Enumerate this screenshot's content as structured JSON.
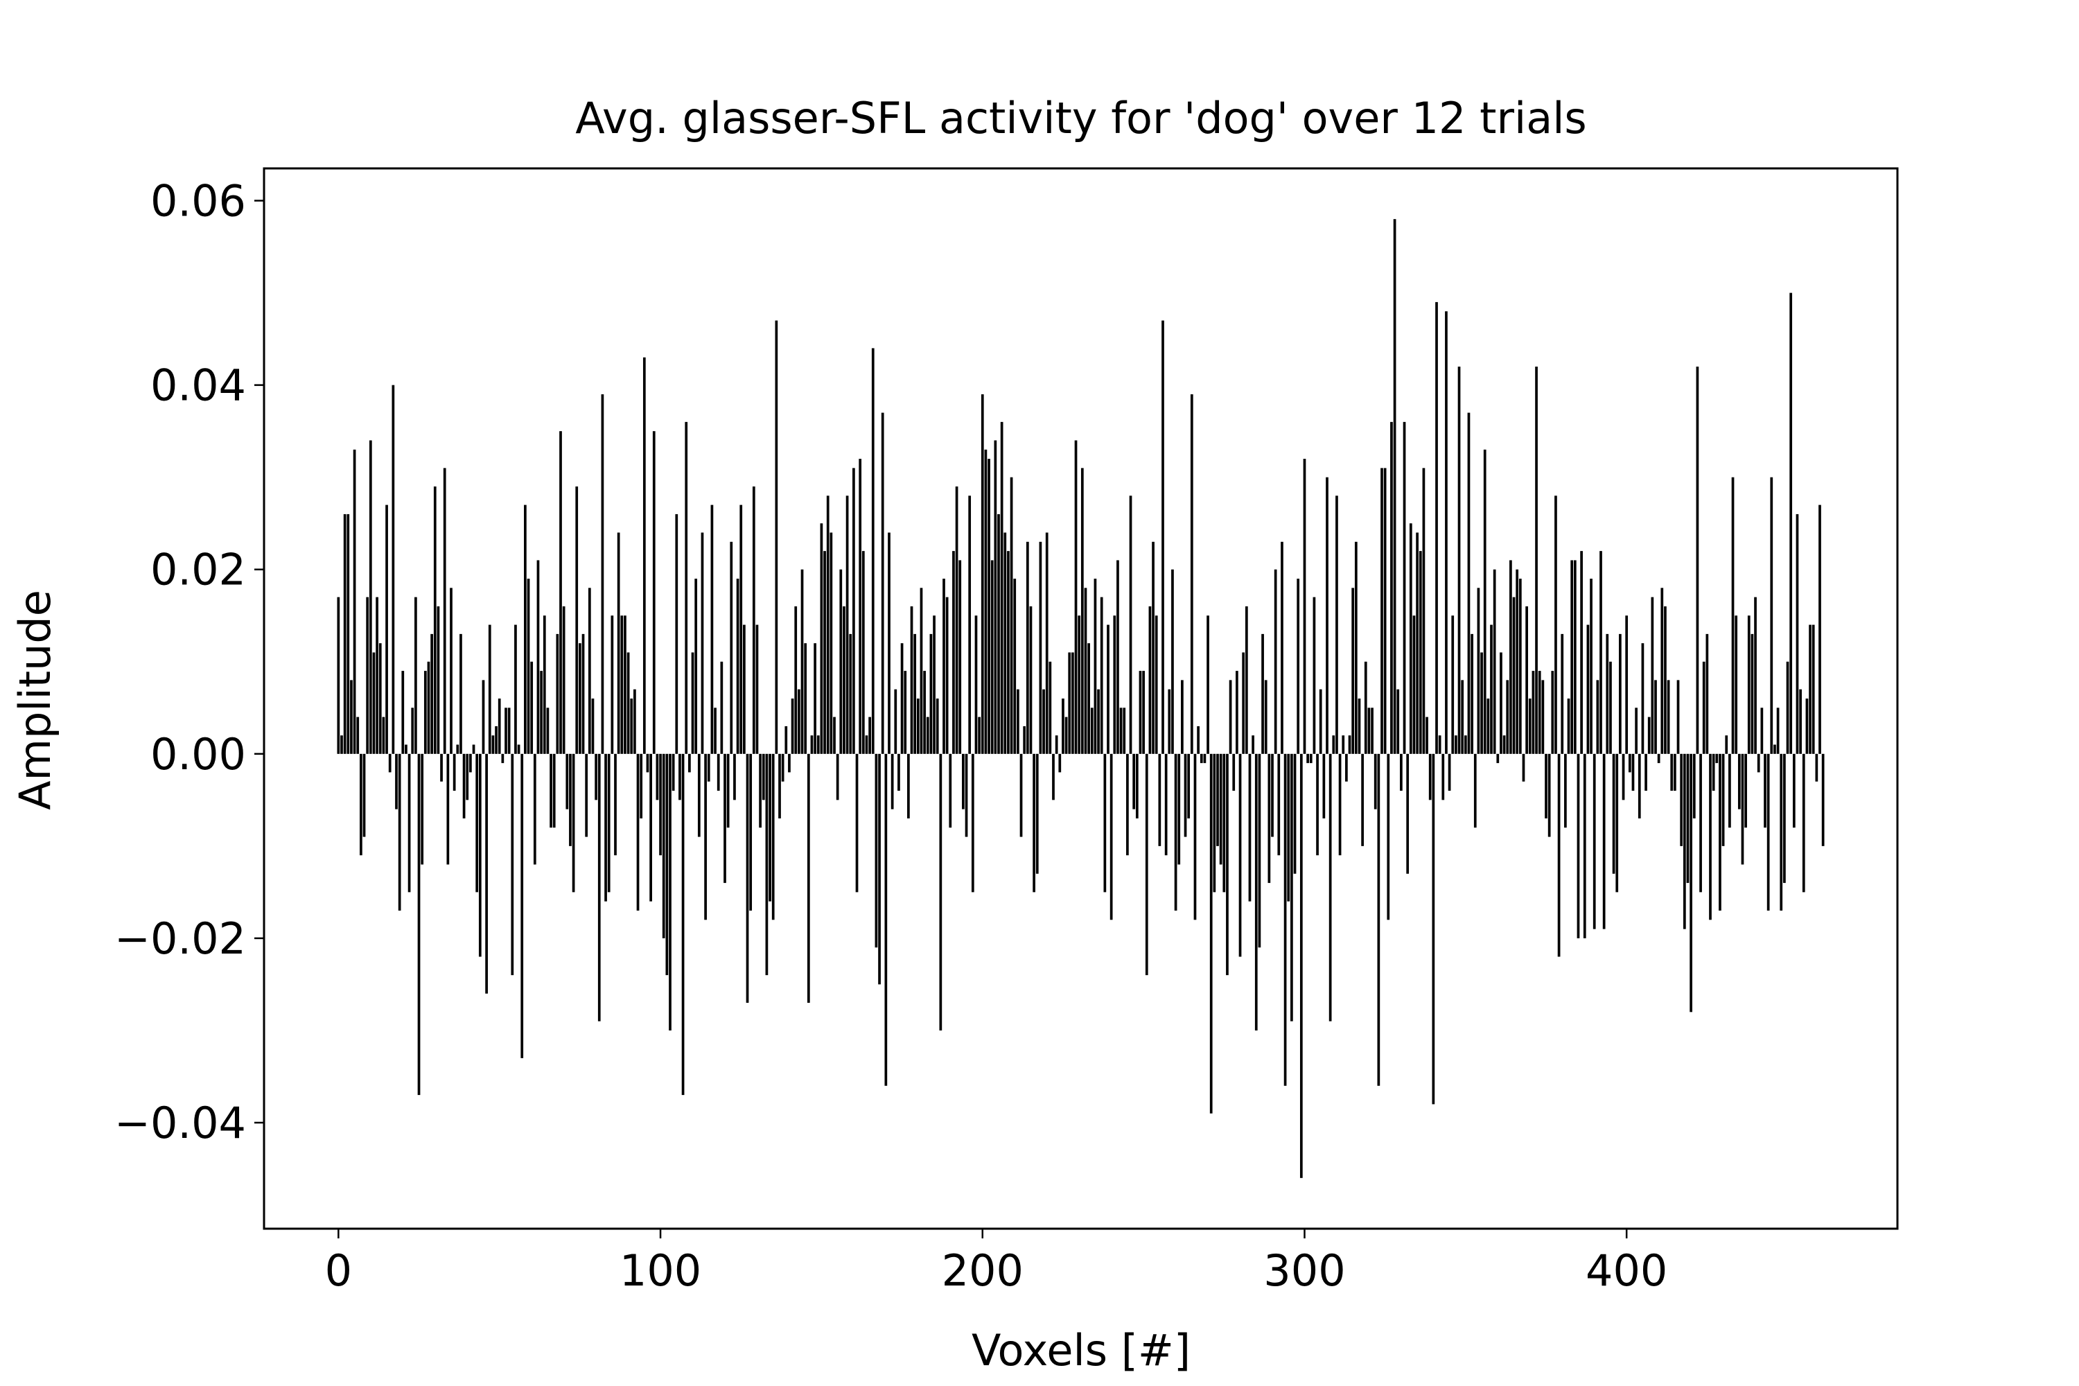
{
  "chart_data": {
    "type": "bar",
    "title": "Avg. glasser-SFL activity for 'dog' over 12 trials",
    "xlabel": "Voxels [#]",
    "ylabel": "Amplitude",
    "color": "#000000",
    "xlim": [
      -23.1,
      484.1
    ],
    "xticks": [
      0,
      100,
      200,
      300,
      400
    ],
    "ylim": [
      -0.0515,
      0.0635
    ],
    "yticks": [
      {
        "value": -0.04,
        "label": "−0.04"
      },
      {
        "value": -0.02,
        "label": "−0.02"
      },
      {
        "value": 0,
        "label": "0.00"
      },
      0.02,
      0.04,
      0.06
    ],
    "values": [
      0.017,
      0.002,
      0.026,
      0.026,
      0.008,
      0.033,
      0.004,
      -0.011,
      -0.009,
      0.017,
      0.034,
      0.011,
      0.017,
      0.012,
      0.004,
      0.027,
      -0.002,
      0.04,
      -0.006,
      -0.017,
      0.009,
      0.001,
      -0.015,
      0.005,
      0.017,
      -0.037,
      -0.012,
      0.009,
      0.01,
      0.013,
      0.029,
      0.016,
      -0.003,
      0.031,
      -0.012,
      0.018,
      -0.004,
      0.001,
      0.013,
      -0.007,
      -0.005,
      -0.002,
      0.001,
      -0.015,
      -0.022,
      0.008,
      -0.026,
      0.014,
      0.002,
      0.003,
      0.006,
      -0.001,
      0.005,
      0.005,
      -0.024,
      0.014,
      0.001,
      -0.033,
      0.027,
      0.019,
      0.01,
      -0.012,
      0.021,
      0.009,
      0.015,
      0.005,
      -0.008,
      -0.008,
      0.013,
      0.035,
      0.016,
      -0.006,
      -0.01,
      -0.015,
      0.029,
      0.012,
      0.013,
      -0.009,
      0.018,
      0.006,
      -0.005,
      -0.029,
      0.039,
      -0.016,
      -0.015,
      0.015,
      -0.011,
      0.024,
      0.015,
      0.015,
      0.011,
      0.006,
      0.007,
      -0.017,
      -0.007,
      0.043,
      -0.002,
      -0.016,
      0.035,
      -0.005,
      -0.011,
      -0.02,
      -0.024,
      -0.03,
      -0.004,
      0.026,
      -0.005,
      -0.037,
      0.036,
      -0.002,
      0.011,
      0.019,
      -0.009,
      0.024,
      -0.018,
      -0.003,
      0.027,
      0.005,
      -0.004,
      0.01,
      -0.014,
      -0.008,
      0.023,
      -0.005,
      0.019,
      0.027,
      0.014,
      -0.027,
      -0.017,
      0.029,
      0.014,
      -0.008,
      -0.005,
      -0.024,
      -0.016,
      -0.018,
      0.047,
      -0.007,
      -0.003,
      0.003,
      -0.002,
      0.006,
      0.016,
      0.007,
      0.02,
      0.012,
      -0.027,
      0.002,
      0.012,
      0.002,
      0.025,
      0.022,
      0.028,
      0.024,
      0.004,
      -0.005,
      0.02,
      0.016,
      0.028,
      0.013,
      0.031,
      -0.015,
      0.032,
      0.022,
      0.002,
      0.004,
      0.044,
      -0.021,
      -0.025,
      0.037,
      -0.036,
      0.024,
      -0.006,
      0.007,
      -0.004,
      0.012,
      0.009,
      -0.007,
      0.016,
      0.013,
      0.006,
      0.018,
      0.009,
      0.004,
      0.013,
      0.015,
      0.006,
      -0.03,
      0.019,
      0.017,
      -0.008,
      0.022,
      0.029,
      0.021,
      -0.006,
      -0.009,
      0.028,
      -0.015,
      0.015,
      0.004,
      0.039,
      0.033,
      0.032,
      0.021,
      0.034,
      0.026,
      0.036,
      0.024,
      0.022,
      0.03,
      0.019,
      0.007,
      -0.009,
      0.003,
      0.023,
      0.016,
      -0.015,
      -0.013,
      0.023,
      0.007,
      0.024,
      0.01,
      -0.005,
      0.002,
      -0.002,
      0.006,
      0.004,
      0.011,
      0.011,
      0.034,
      0.015,
      0.031,
      0.018,
      0.012,
      0.005,
      0.019,
      0.007,
      0.017,
      -0.015,
      0.014,
      -0.018,
      0.015,
      0.021,
      0.005,
      0.005,
      -0.011,
      0.028,
      -0.006,
      -0.007,
      0.009,
      0.009,
      -0.024,
      0.016,
      0.023,
      0.015,
      -0.01,
      0.047,
      -0.011,
      0.007,
      0.02,
      -0.017,
      -0.012,
      0.008,
      -0.009,
      -0.007,
      0.039,
      -0.018,
      0.003,
      -0.001,
      -0.001,
      0.015,
      -0.039,
      -0.015,
      -0.01,
      -0.012,
      -0.015,
      -0.024,
      0.008,
      -0.004,
      0.009,
      -0.022,
      0.011,
      0.016,
      -0.016,
      0.002,
      -0.03,
      -0.021,
      0.013,
      0.008,
      -0.014,
      -0.009,
      0.02,
      -0.011,
      0.023,
      -0.036,
      -0.016,
      -0.029,
      -0.013,
      0.019,
      -0.046,
      0.032,
      -0.001,
      -0.001,
      0.017,
      -0.011,
      0.007,
      -0.007,
      0.03,
      -0.029,
      0.002,
      0.028,
      -0.011,
      0.002,
      -0.003,
      0.002,
      0.018,
      0.023,
      0.006,
      -0.01,
      0.01,
      0.005,
      0.005,
      -0.006,
      -0.036,
      0.031,
      0.031,
      -0.018,
      0.036,
      0.058,
      0.007,
      -0.004,
      0.036,
      -0.013,
      0.025,
      0.015,
      0.024,
      0.022,
      0.031,
      0.004,
      -0.005,
      -0.038,
      0.049,
      0.002,
      -0.005,
      0.048,
      -0.004,
      0.015,
      0.002,
      0.042,
      0.008,
      0.002,
      0.037,
      0.013,
      -0.008,
      0.018,
      0.011,
      0.033,
      0.006,
      0.014,
      0.02,
      -0.001,
      0.011,
      0.002,
      0.008,
      0.021,
      0.017,
      0.02,
      0.019,
      -0.003,
      0.016,
      0.006,
      0.009,
      0.042,
      0.009,
      0.008,
      -0.007,
      -0.009,
      0.009,
      0.028,
      -0.022,
      0.013,
      -0.008,
      0.006,
      0.021,
      0.021,
      -0.02,
      0.022,
      -0.02,
      0.014,
      0.019,
      -0.019,
      0.008,
      0.022,
      -0.019,
      0.013,
      0.01,
      -0.013,
      -0.015,
      0.013,
      -0.005,
      0.015,
      -0.002,
      -0.004,
      0.005,
      -0.007,
      0.012,
      -0.004,
      0.004,
      0.017,
      0.008,
      -0.001,
      0.018,
      0.016,
      0.008,
      -0.004,
      -0.004,
      0.008,
      -0.01,
      -0.019,
      -0.014,
      -0.028,
      -0.007,
      0.042,
      -0.015,
      0.01,
      0.013,
      -0.018,
      -0.004,
      -0.001,
      -0.017,
      -0.01,
      0.002,
      -0.008,
      0.03,
      0.015,
      -0.006,
      -0.012,
      -0.008,
      0.015,
      0.013,
      0.017,
      -0.002,
      0.005,
      -0.008,
      -0.017,
      0.03,
      0.001,
      0.005,
      -0.017,
      -0.014,
      0.01,
      0.05,
      -0.008,
      0.026,
      0.007,
      -0.015,
      0.006,
      0.014,
      0.014,
      -0.003,
      0.027,
      -0.01
    ]
  }
}
